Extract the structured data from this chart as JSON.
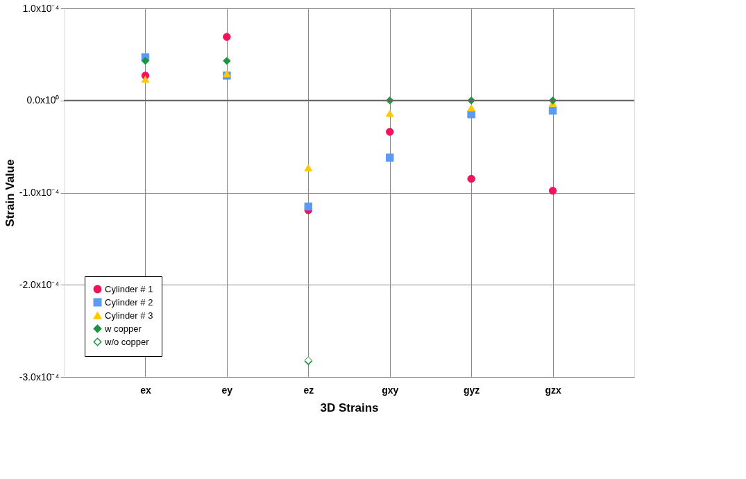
{
  "chart_data": {
    "type": "scatter",
    "xlabel": "3D Strains",
    "ylabel": "Strain Value",
    "categories": [
      "ex",
      "ey",
      "ez",
      "gxy",
      "gyz",
      "gzx"
    ],
    "series": [
      {
        "name": "Cylinder # 1",
        "color": "#f0145a",
        "marker": "circle",
        "values": [
          2.7e-05,
          6.9e-05,
          -0.000119,
          -3.4e-05,
          -8.5e-05,
          -9.8e-05
        ]
      },
      {
        "name": "Cylinder # 2",
        "color": "#5b9bf5",
        "marker": "square",
        "values": [
          4.7e-05,
          2.7e-05,
          -0.000115,
          -6.2e-05,
          -1.5e-05,
          -1.1e-05
        ]
      },
      {
        "name": "Cylinder # 3",
        "color": "#ffc800",
        "marker": "triangle",
        "values": [
          2.3e-05,
          2.9e-05,
          -7.3e-05,
          -1.4e-05,
          -8e-06,
          -3e-06
        ]
      },
      {
        "name": "w copper",
        "color": "#1a9641",
        "marker": "diamond",
        "values": [
          4.3e-05,
          4.3e-05,
          -0.000283,
          0,
          0,
          0
        ]
      },
      {
        "name": "w/o copper",
        "color": "#1a9641",
        "marker": "diamond",
        "values": [
          null,
          null,
          -0.000282,
          null,
          null,
          null
        ]
      }
    ],
    "ylim": [
      -0.0003,
      0.0001
    ],
    "yticks": [
      {
        "value": 0.0001,
        "label": "1.0x10⁻⁴"
      },
      {
        "value": 0,
        "label": "0.0x10⁰"
      },
      {
        "value": -0.0001,
        "label": "-1.0x10⁻⁴"
      },
      {
        "value": -0.0002,
        "label": "-2.0x10⁻⁴"
      },
      {
        "value": -0.0003,
        "label": "-3.0x10⁻⁴"
      }
    ],
    "ref_lines": [
      {
        "axis": "y",
        "value": 0,
        "color": "#666666"
      }
    ],
    "grid": true,
    "legend": "bottom left"
  }
}
